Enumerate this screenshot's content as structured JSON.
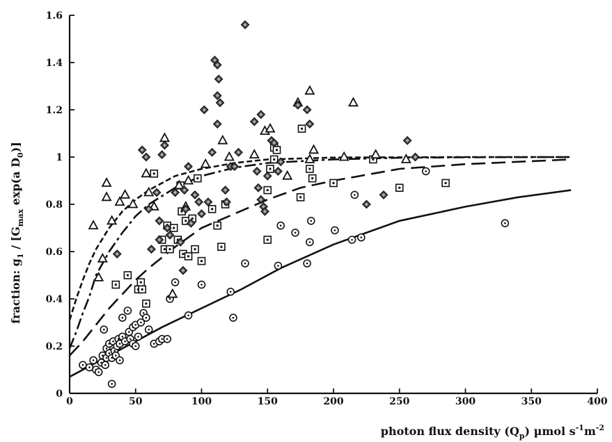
{
  "chart_data": {
    "type": "scatter",
    "title": "",
    "xlabel": {
      "main": "photon flux density (Q",
      "sub": "p",
      "tail": ")  µmol s",
      "sup1": "-1",
      "mid": "m",
      "sup2": "-2"
    },
    "ylabel": {
      "p1": "fraction: g",
      "s1": "1",
      "p2": " / [G",
      "s2": "max",
      "p3": " exp(a D",
      "s3": "0",
      "p4": ")]"
    },
    "xlim": [
      0,
      400
    ],
    "ylim": [
      0,
      1.6
    ],
    "x_ticks": [
      0,
      50,
      100,
      150,
      200,
      250,
      300,
      350,
      400
    ],
    "y_ticks": [
      0,
      0.2,
      0.4,
      0.6,
      0.8,
      1,
      1.2,
      1.4,
      1.6
    ],
    "x_tick_labels": [
      "0",
      "50",
      "100",
      "150",
      "200",
      "250",
      "300",
      "350",
      "400"
    ],
    "y_tick_labels": [
      "0",
      "0.2",
      "0.4",
      "0.6",
      "0.8",
      "1",
      "1.2",
      "1.4",
      "1.6"
    ],
    "grid": false,
    "series": [
      {
        "marker": "circle-dot",
        "points": [
          [
            10,
            0.12
          ],
          [
            15,
            0.11
          ],
          [
            18,
            0.14
          ],
          [
            20,
            0.1
          ],
          [
            22,
            0.09
          ],
          [
            24,
            0.13
          ],
          [
            25,
            0.16
          ],
          [
            26,
            0.27
          ],
          [
            27,
            0.12
          ],
          [
            28,
            0.19
          ],
          [
            28,
            0.15
          ],
          [
            30,
            0.21
          ],
          [
            30,
            0.17
          ],
          [
            32,
            0.04
          ],
          [
            32,
            0.15
          ],
          [
            33,
            0.22
          ],
          [
            34,
            0.18
          ],
          [
            35,
            0.16
          ],
          [
            36,
            0.2
          ],
          [
            37,
            0.23
          ],
          [
            38,
            0.21
          ],
          [
            38,
            0.14
          ],
          [
            40,
            0.24
          ],
          [
            40,
            0.32
          ],
          [
            42,
            0.22
          ],
          [
            44,
            0.35
          ],
          [
            45,
            0.26
          ],
          [
            46,
            0.23
          ],
          [
            48,
            0.28
          ],
          [
            48,
            0.21
          ],
          [
            50,
            0.2
          ],
          [
            50,
            0.29
          ],
          [
            52,
            0.24
          ],
          [
            54,
            0.3
          ],
          [
            56,
            0.34
          ],
          [
            58,
            0.32
          ],
          [
            60,
            0.27
          ],
          [
            64,
            0.21
          ],
          [
            68,
            0.22
          ],
          [
            70,
            0.23
          ],
          [
            74,
            0.23
          ],
          [
            76,
            0.4
          ],
          [
            80,
            0.47
          ],
          [
            90,
            0.33
          ],
          [
            100,
            0.46
          ],
          [
            122,
            0.43
          ],
          [
            124,
            0.32
          ],
          [
            133,
            0.55
          ],
          [
            158,
            0.54
          ],
          [
            160,
            0.71
          ],
          [
            171,
            0.68
          ],
          [
            180,
            0.55
          ],
          [
            182,
            0.64
          ],
          [
            183,
            0.73
          ],
          [
            201,
            0.69
          ],
          [
            214,
            0.65
          ],
          [
            216,
            0.84
          ],
          [
            221,
            0.66
          ],
          [
            270,
            0.94
          ],
          [
            330,
            0.72
          ]
        ]
      },
      {
        "marker": "square-dot",
        "points": [
          [
            35,
            0.46
          ],
          [
            44,
            0.5
          ],
          [
            52,
            0.44
          ],
          [
            54,
            0.47
          ],
          [
            55,
            0.44
          ],
          [
            58,
            0.38
          ],
          [
            64,
            0.93
          ],
          [
            70,
            0.65
          ],
          [
            72,
            0.61
          ],
          [
            74,
            0.71
          ],
          [
            76,
            0.61
          ],
          [
            79,
            0.7
          ],
          [
            82,
            0.65
          ],
          [
            84,
            0.88
          ],
          [
            85,
            0.77
          ],
          [
            86,
            0.59
          ],
          [
            88,
            0.73
          ],
          [
            90,
            0.58
          ],
          [
            93,
            0.74
          ],
          [
            95,
            0.61
          ],
          [
            97,
            0.91
          ],
          [
            100,
            0.56
          ],
          [
            108,
            0.78
          ],
          [
            112,
            0.71
          ],
          [
            115,
            0.62
          ],
          [
            118,
            0.8
          ],
          [
            150,
            0.65
          ],
          [
            150,
            0.86
          ],
          [
            152,
            0.95
          ],
          [
            155,
            0.99
          ],
          [
            155,
            1.04
          ],
          [
            157,
            1.03
          ],
          [
            175,
            0.83
          ],
          [
            176,
            1.12
          ],
          [
            182,
            0.95
          ],
          [
            184,
            0.91
          ],
          [
            200,
            0.89
          ],
          [
            230,
            0.99
          ],
          [
            250,
            0.87
          ],
          [
            285,
            0.89
          ]
        ]
      },
      {
        "marker": "triangle",
        "points": [
          [
            18,
            0.71
          ],
          [
            22,
            0.49
          ],
          [
            25,
            0.57
          ],
          [
            28,
            0.89
          ],
          [
            28,
            0.83
          ],
          [
            32,
            0.73
          ],
          [
            38,
            0.81
          ],
          [
            42,
            0.84
          ],
          [
            48,
            0.8
          ],
          [
            58,
            0.93
          ],
          [
            60,
            0.85
          ],
          [
            64,
            0.79
          ],
          [
            72,
            1.08
          ],
          [
            78,
            0.42
          ],
          [
            83,
            0.88
          ],
          [
            88,
            0.79
          ],
          [
            90,
            0.9
          ],
          [
            103,
            0.97
          ],
          [
            116,
            1.07
          ],
          [
            121,
            1.0
          ],
          [
            140,
            1.01
          ],
          [
            148,
            1.11
          ],
          [
            152,
            1.12
          ],
          [
            165,
            0.92
          ],
          [
            173,
            1.23
          ],
          [
            182,
            1.28
          ],
          [
            182,
            0.99
          ],
          [
            185,
            1.03
          ],
          [
            208,
            1.0
          ],
          [
            215,
            1.23
          ],
          [
            232,
            1.01
          ],
          [
            255,
            0.99
          ]
        ]
      },
      {
        "marker": "diamond",
        "points": [
          [
            36,
            0.59
          ],
          [
            55,
            1.03
          ],
          [
            58,
            1.0
          ],
          [
            60,
            0.78
          ],
          [
            62,
            0.61
          ],
          [
            66,
            0.85
          ],
          [
            68,
            0.73
          ],
          [
            68,
            0.65
          ],
          [
            70,
            1.01
          ],
          [
            72,
            1.05
          ],
          [
            74,
            0.7
          ],
          [
            76,
            0.67
          ],
          [
            80,
            0.85
          ],
          [
            84,
            0.64
          ],
          [
            86,
            0.52
          ],
          [
            87,
            0.86
          ],
          [
            88,
            0.78
          ],
          [
            90,
            0.96
          ],
          [
            92,
            0.72
          ],
          [
            95,
            0.84
          ],
          [
            98,
            0.81
          ],
          [
            100,
            0.76
          ],
          [
            102,
            1.2
          ],
          [
            105,
            0.81
          ],
          [
            108,
            1.02
          ],
          [
            110,
            1.41
          ],
          [
            112,
            1.39
          ],
          [
            112,
            1.14
          ],
          [
            112,
            1.26
          ],
          [
            113,
            1.33
          ],
          [
            114,
            1.23
          ],
          [
            118,
            0.86
          ],
          [
            119,
            0.81
          ],
          [
            122,
            0.96
          ],
          [
            125,
            0.96
          ],
          [
            128,
            1.02
          ],
          [
            133,
            1.56
          ],
          [
            140,
            1.15
          ],
          [
            142,
            0.94
          ],
          [
            143,
            0.87
          ],
          [
            145,
            0.82
          ],
          [
            145,
            1.18
          ],
          [
            147,
            0.79
          ],
          [
            148,
            0.77
          ],
          [
            150,
            0.92
          ],
          [
            153,
            1.07
          ],
          [
            155,
            1.06
          ],
          [
            158,
            0.94
          ],
          [
            160,
            0.98
          ],
          [
            173,
            1.22
          ],
          [
            180,
            1.2
          ],
          [
            182,
            1.14
          ],
          [
            225,
            0.8
          ],
          [
            238,
            0.84
          ],
          [
            256,
            1.07
          ],
          [
            262,
            1.0
          ]
        ]
      }
    ],
    "curves": [
      {
        "style": "short-dash",
        "points": [
          [
            0,
            0.31
          ],
          [
            5,
            0.4
          ],
          [
            10,
            0.48
          ],
          [
            15,
            0.55
          ],
          [
            20,
            0.61
          ],
          [
            30,
            0.7
          ],
          [
            40,
            0.77
          ],
          [
            50,
            0.82
          ],
          [
            60,
            0.86
          ],
          [
            80,
            0.92
          ],
          [
            100,
            0.95
          ],
          [
            125,
            0.975
          ],
          [
            150,
            0.99
          ],
          [
            200,
            0.998
          ],
          [
            300,
            1.0
          ],
          [
            380,
            1.0
          ]
        ]
      },
      {
        "style": "dash-dot",
        "points": [
          [
            0,
            0.19
          ],
          [
            5,
            0.26
          ],
          [
            10,
            0.34
          ],
          [
            15,
            0.41
          ],
          [
            20,
            0.5
          ],
          [
            30,
            0.6
          ],
          [
            40,
            0.68
          ],
          [
            50,
            0.75
          ],
          [
            60,
            0.8
          ],
          [
            80,
            0.87
          ],
          [
            100,
            0.92
          ],
          [
            125,
            0.955
          ],
          [
            150,
            0.975
          ],
          [
            200,
            0.99
          ],
          [
            250,
            0.997
          ],
          [
            300,
            0.999
          ],
          [
            380,
            1.0
          ]
        ]
      },
      {
        "style": "long-dash",
        "points": [
          [
            0,
            0.16
          ],
          [
            10,
            0.22
          ],
          [
            20,
            0.29
          ],
          [
            30,
            0.36
          ],
          [
            40,
            0.42
          ],
          [
            50,
            0.48
          ],
          [
            60,
            0.53
          ],
          [
            80,
            0.62
          ],
          [
            100,
            0.7
          ],
          [
            125,
            0.76
          ],
          [
            150,
            0.82
          ],
          [
            175,
            0.87
          ],
          [
            200,
            0.9
          ],
          [
            250,
            0.95
          ],
          [
            300,
            0.97
          ],
          [
            380,
            0.99
          ]
        ]
      },
      {
        "style": "solid",
        "points": [
          [
            0,
            0.07
          ],
          [
            10,
            0.1
          ],
          [
            20,
            0.13
          ],
          [
            30,
            0.16
          ],
          [
            40,
            0.19
          ],
          [
            50,
            0.22
          ],
          [
            70,
            0.28
          ],
          [
            100,
            0.36
          ],
          [
            130,
            0.44
          ],
          [
            160,
            0.53
          ],
          [
            200,
            0.63
          ],
          [
            250,
            0.73
          ],
          [
            300,
            0.79
          ],
          [
            340,
            0.83
          ],
          [
            380,
            0.86
          ]
        ]
      }
    ]
  }
}
